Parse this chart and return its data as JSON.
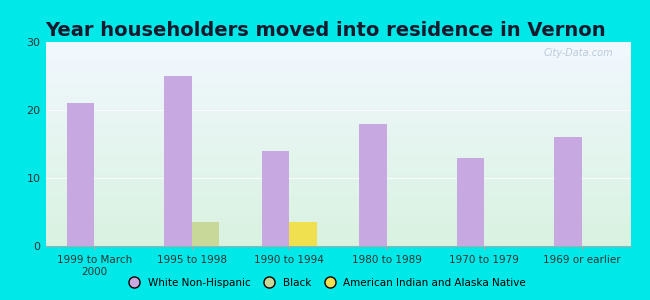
{
  "title": "Year householders moved into residence in Vernon",
  "categories": [
    "1999 to March\n2000",
    "1995 to 1998",
    "1990 to 1994",
    "1980 to 1989",
    "1970 to 1979",
    "1969 or earlier"
  ],
  "white_non_hispanic": [
    21,
    25,
    14,
    18,
    13,
    16
  ],
  "black": [
    0,
    3.5,
    0,
    0,
    0,
    0
  ],
  "american_indian": [
    0,
    0,
    3.5,
    0,
    0,
    0
  ],
  "white_color": "#c8a8e0",
  "black_color": "#c8d898",
  "american_indian_color": "#f0e050",
  "ylim": [
    0,
    30
  ],
  "yticks": [
    0,
    10,
    20,
    30
  ],
  "bg_outer": "#00e8e8",
  "bar_width": 0.28,
  "title_fontsize": 14,
  "legend_labels": [
    "White Non-Hispanic",
    "Black",
    "American Indian and Alaska Native"
  ],
  "watermark": "City-Data.com"
}
